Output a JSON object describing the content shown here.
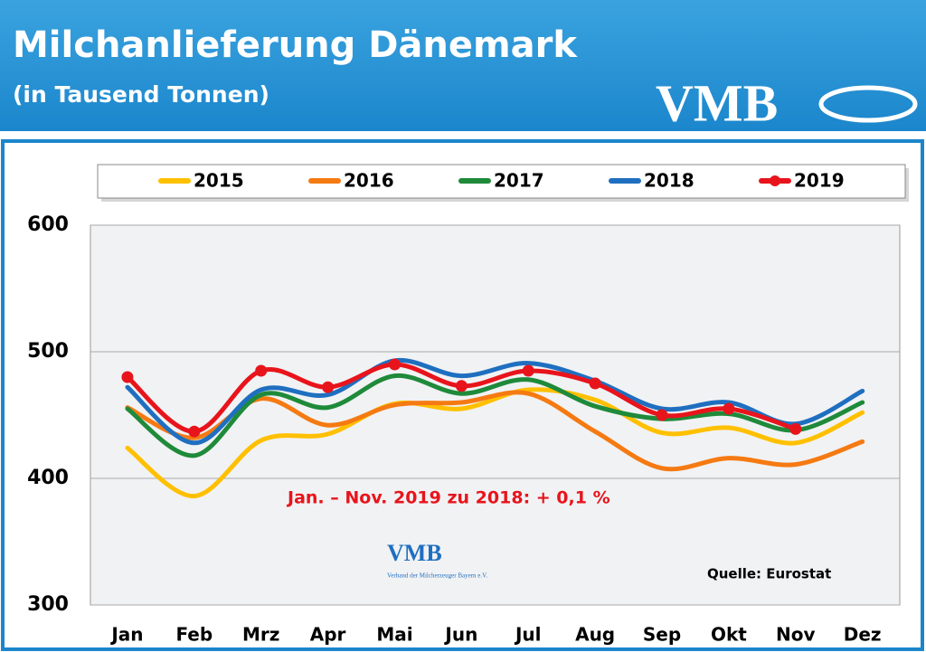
{
  "chart_data": {
    "type": "line",
    "title": "Milchanlieferung Dänemark",
    "subtitle": "(in Tausend Tonnen)",
    "logo": "VMB",
    "watermark_logo": "VMB",
    "watermark_text": "Verband der Milcherzeuger Bayern e.V.",
    "annotation": "Jan. – Nov. 2019 zu 2018:  + 0,1 %",
    "source": "Quelle: Eurostat",
    "categories": [
      "Jan",
      "Feb",
      "Mrz",
      "Apr",
      "Mai",
      "Jun",
      "Jul",
      "Aug",
      "Sep",
      "Okt",
      "Nov",
      "Dez"
    ],
    "series": [
      {
        "name": "2015",
        "color": "#ffc000",
        "values": [
          424,
          386,
          430,
          435,
          459,
          455,
          470,
          462,
          436,
          440,
          428,
          452
        ]
      },
      {
        "name": "2016",
        "color": "#f57a12",
        "values": [
          456,
          432,
          463,
          442,
          458,
          460,
          467,
          437,
          408,
          416,
          411,
          429
        ]
      },
      {
        "name": "2017",
        "color": "#1e8a3a",
        "values": [
          455,
          418,
          466,
          456,
          481,
          467,
          478,
          457,
          447,
          451,
          438,
          460
        ]
      },
      {
        "name": "2018",
        "color": "#1f6fc0",
        "values": [
          472,
          428,
          470,
          466,
          493,
          481,
          491,
          477,
          455,
          460,
          443,
          469
        ]
      },
      {
        "name": "2019",
        "color": "#e8141c",
        "markers": true,
        "values": [
          480,
          437,
          485,
          472,
          490,
          473,
          485,
          475,
          450,
          455,
          439,
          null
        ]
      }
    ],
    "ylim": [
      300,
      600
    ],
    "yticks": [
      300,
      400,
      500,
      600
    ],
    "grid": true
  }
}
